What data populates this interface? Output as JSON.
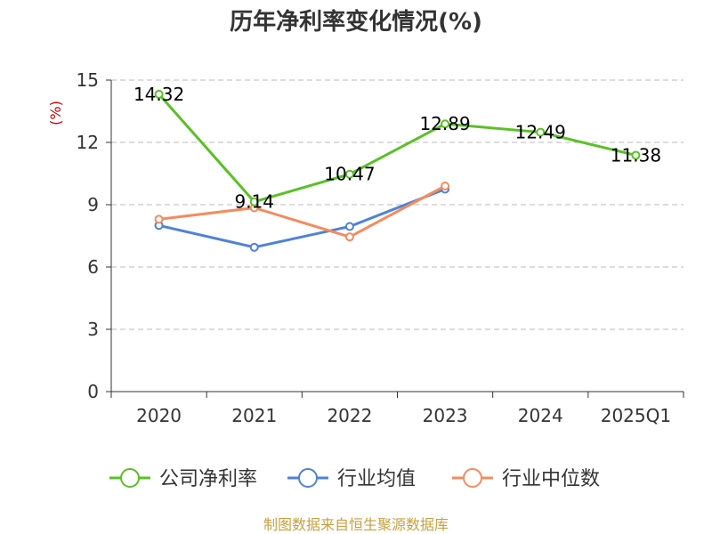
{
  "chart_data": {
    "type": "line",
    "title": "历年净利率变化情况(%)",
    "ylabel": "(%)",
    "categories": [
      "2020",
      "2021",
      "2022",
      "2023",
      "2024",
      "2025Q1"
    ],
    "ylim": [
      0,
      15
    ],
    "yticks": [
      0,
      3,
      6,
      9,
      12,
      15
    ],
    "grid": true,
    "legend_position": "bottom",
    "series": [
      {
        "name": "公司净利率",
        "color": "#5ac026",
        "values": [
          14.32,
          9.14,
          10.47,
          12.89,
          12.49,
          11.38
        ],
        "labels": [
          "14.32",
          "9.14",
          "10.47",
          "12.89",
          "12.49",
          "11.38"
        ]
      },
      {
        "name": "行业均值",
        "color": "#4f81d9",
        "values": [
          8.0,
          6.95,
          7.95,
          9.75,
          null,
          null
        ]
      },
      {
        "name": "行业中位数",
        "color": "#f28c5e",
        "values": [
          8.3,
          8.85,
          7.45,
          9.9,
          null,
          null
        ]
      }
    ]
  },
  "source": "制图数据来自恒生聚源数据库"
}
